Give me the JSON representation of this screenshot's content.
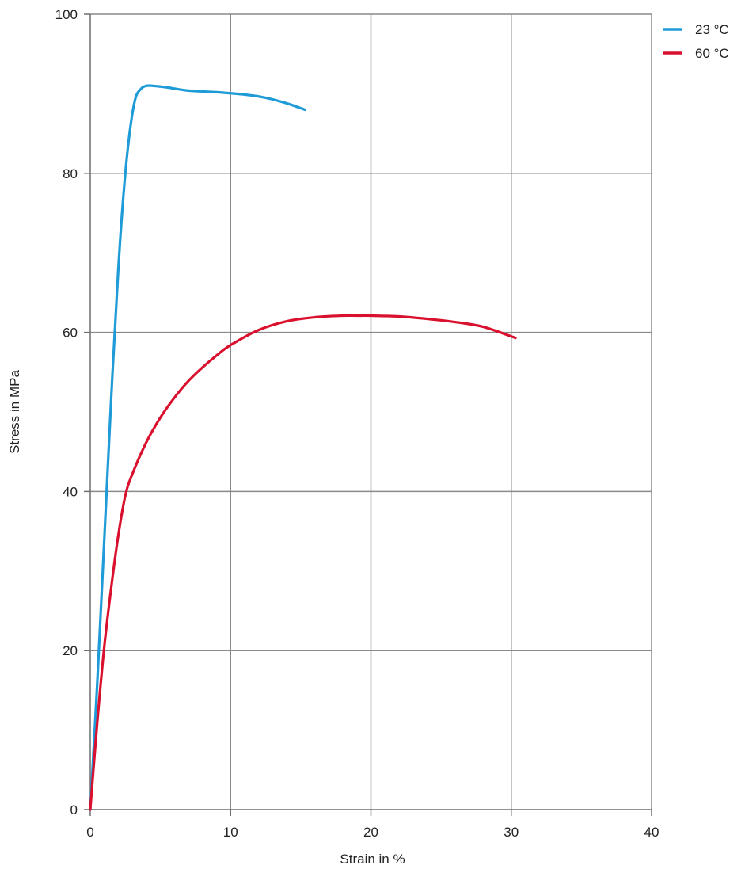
{
  "chart_data": {
    "type": "line",
    "xlabel": "Strain in  %",
    "ylabel": "Stress in  MPa",
    "xlim": [
      0,
      40
    ],
    "ylim": [
      0,
      100
    ],
    "x_ticks": [
      0,
      10,
      20,
      30,
      40
    ],
    "y_ticks": [
      0,
      20,
      40,
      60,
      80,
      100
    ],
    "grid": true,
    "legend_position": "top-right",
    "series": [
      {
        "name": "23 °C",
        "color": "#1f9bd7",
        "x": [
          0,
          0.5,
          1.0,
          1.5,
          2.0,
          2.4,
          2.8,
          3.2,
          3.6,
          4.0,
          4.5,
          5.5,
          7.0,
          9.0,
          11.0,
          12.5,
          14.0,
          15.3
        ],
        "y": [
          0,
          16,
          34,
          52,
          68,
          78,
          85,
          89.3,
          90.6,
          91.0,
          91.0,
          90.8,
          90.4,
          90.2,
          89.9,
          89.5,
          88.8,
          88.0
        ]
      },
      {
        "name": "60 °C",
        "color": "#d9112f",
        "x": [
          0,
          0.5,
          1.0,
          1.5,
          2.0,
          2.5,
          3.0,
          4.0,
          5.0,
          6.0,
          7.0,
          8.0,
          9.0,
          10.0,
          12.0,
          14.0,
          16.0,
          18.0,
          19.0,
          20.0,
          22.0,
          24.0,
          26.0,
          28.0,
          30.3
        ],
        "y": [
          0,
          11,
          20.5,
          28,
          34.5,
          39.5,
          42.2,
          46.2,
          49.3,
          51.8,
          53.9,
          55.6,
          57.1,
          58.4,
          60.3,
          61.4,
          61.9,
          62.1,
          62.1,
          62.1,
          62.0,
          61.7,
          61.3,
          60.7,
          59.3
        ]
      }
    ]
  }
}
